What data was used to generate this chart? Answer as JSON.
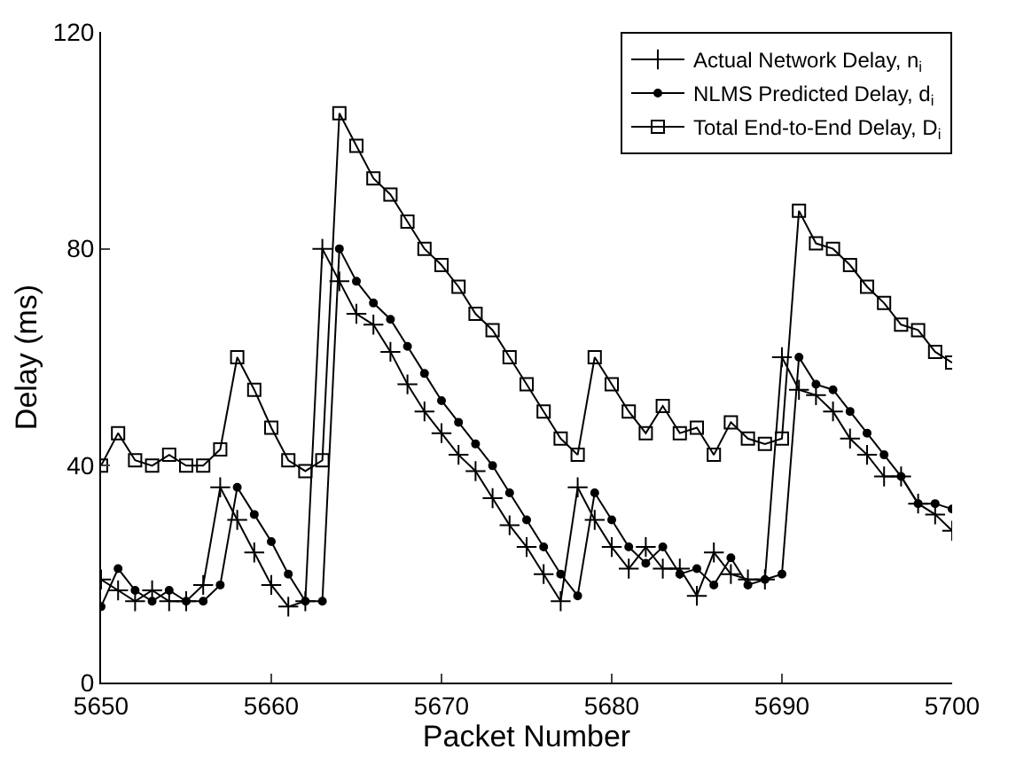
{
  "chart_data": {
    "type": "line",
    "xlabel": "Packet Number",
    "ylabel": "Delay (ms)",
    "x": [
      5650,
      5651,
      5652,
      5653,
      5654,
      5655,
      5656,
      5657,
      5658,
      5659,
      5660,
      5661,
      5662,
      5663,
      5664,
      5665,
      5666,
      5667,
      5668,
      5669,
      5670,
      5671,
      5672,
      5673,
      5674,
      5675,
      5676,
      5677,
      5678,
      5679,
      5680,
      5681,
      5682,
      5683,
      5684,
      5685,
      5686,
      5687,
      5688,
      5689,
      5690,
      5691,
      5692,
      5693,
      5694,
      5695,
      5696,
      5697,
      5698,
      5699,
      5700
    ],
    "series": [
      {
        "name": "Actual Network Delay, n$_{i}$",
        "color": "#000000",
        "marker": "cross",
        "values": [
          19,
          17,
          15,
          17,
          15,
          15,
          18,
          36,
          30,
          24,
          18,
          14,
          15,
          80,
          74,
          68,
          66,
          61,
          55,
          50,
          46,
          42,
          39,
          34,
          29,
          25,
          20,
          15,
          36,
          30,
          25,
          21,
          25,
          21,
          21,
          16,
          24,
          20,
          19,
          19,
          60,
          54,
          53,
          50,
          45,
          42,
          38,
          38,
          33,
          31,
          28
        ]
      },
      {
        "name": "NLMS Predicted Delay, d$_{i}$",
        "color": "#000000",
        "marker": "circle",
        "values": [
          14,
          21,
          17,
          15,
          17,
          15,
          15,
          18,
          36,
          31,
          26,
          20,
          15,
          15,
          80,
          74,
          70,
          67,
          62,
          57,
          52,
          48,
          44,
          40,
          35,
          30,
          25,
          20,
          16,
          35,
          30,
          25,
          22,
          25,
          20,
          21,
          18,
          23,
          18,
          19,
          20,
          60,
          55,
          54,
          50,
          46,
          42,
          38,
          33,
          33,
          32
        ]
      },
      {
        "name": "Total End-to-End Delay, D$_{i}$",
        "color": "#000000",
        "marker": "square",
        "values": [
          40,
          46,
          41,
          40,
          42,
          40,
          40,
          43,
          60,
          54,
          47,
          41,
          39,
          41,
          105,
          99,
          93,
          90,
          85,
          80,
          77,
          73,
          68,
          65,
          60,
          55,
          50,
          45,
          42,
          60,
          55,
          50,
          46,
          51,
          46,
          47,
          42,
          48,
          45,
          44,
          45,
          87,
          81,
          80,
          77,
          73,
          70,
          66,
          65,
          61,
          59
        ]
      }
    ],
    "xlim": [
      5650,
      5700
    ],
    "xticks": [
      5650,
      5660,
      5670,
      5680,
      5690,
      5700
    ],
    "ylim": [
      0,
      120
    ],
    "yticks": [
      0,
      40,
      80,
      120
    ],
    "grid": false,
    "legend": "top right",
    "line_style": "solid"
  }
}
